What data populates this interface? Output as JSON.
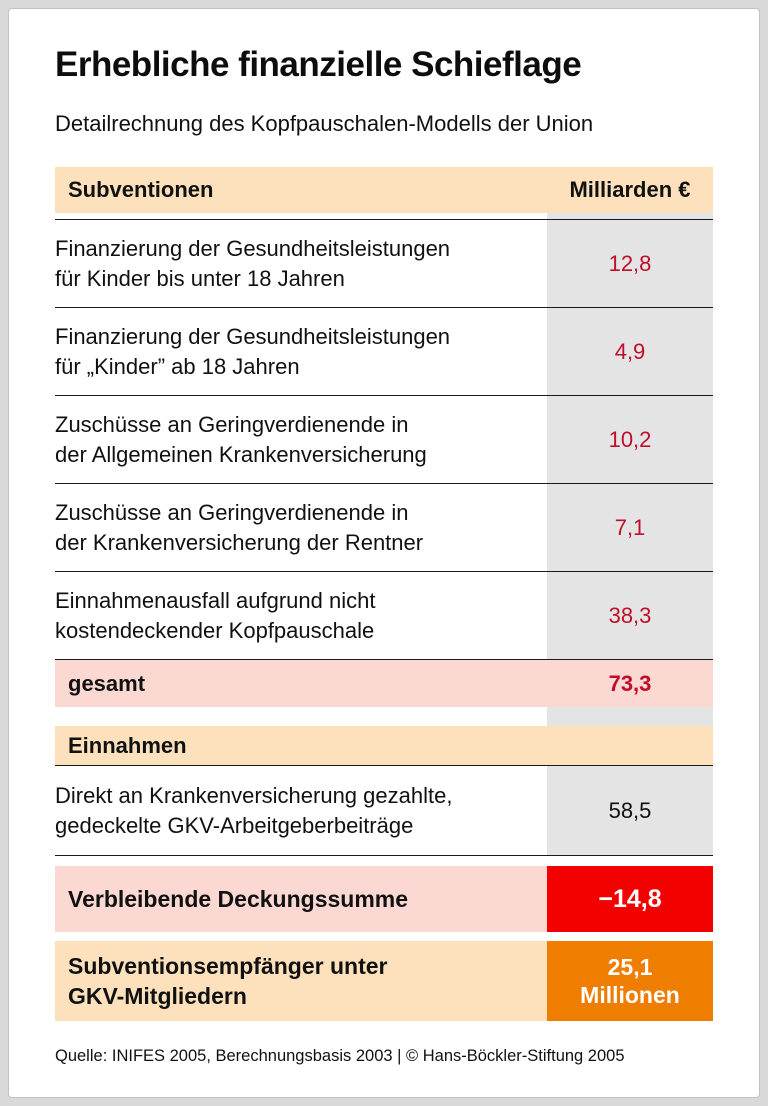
{
  "title": "Erhebliche finanzielle Schieflage",
  "subtitle": "Detailrechnung des Kopfpauschalen-Modells der Union",
  "table": {
    "header": {
      "label": "Subventionen",
      "unit": "Milliarden €"
    },
    "rows": [
      {
        "label": "Finanzierung der Gesundheitsleistungen\nfür Kinder bis unter 18 Jahren",
        "value": "12,8"
      },
      {
        "label": "Finanzierung der Gesundheitsleistungen\nfür „Kinder” ab 18 Jahren",
        "value": "4,9"
      },
      {
        "label": "Zuschüsse an Geringverdienende in\nder Allgemeinen Krankenversicherung",
        "value": "10,2"
      },
      {
        "label": "Zuschüsse an Geringverdienende in\nder Krankenversicherung der Rentner",
        "value": "7,1"
      },
      {
        "label": "Einnahmenausfall aufgrund nicht\nkostendeckender Kopfpauschale",
        "value": "38,3"
      }
    ],
    "total": {
      "label": "gesamt",
      "value": "73,3"
    },
    "income": {
      "header": "Einnahmen",
      "row": {
        "label": "Direkt an Krankenversicherung gezahlte,\ngedeckelte GKV-Arbeitgeberbeiträge",
        "value": "58,5"
      }
    },
    "balance": {
      "label": "Verbleibende Deckungssumme",
      "value": "−14,8"
    },
    "recipients": {
      "label": "Subventionsempfänger unter\nGKV-Mitgliedern",
      "value": "25,1\nMillionen"
    }
  },
  "footer": "Quelle: INIFES 2005, Berechnungsbasis 2003 | © Hans-Böckler-Stiftung 2005",
  "colors": {
    "band_peach": "#fce1bc",
    "value_column_gray": "#e4e4e4",
    "total_row_pink": "#fbd8d2",
    "negative_box_red": "#f30000",
    "recipients_box_orange": "#ef7d00",
    "value_text_red": "#c00d29"
  },
  "chart_data": {
    "type": "table",
    "title": "Erhebliche finanzielle Schieflage",
    "subtitle": "Detailrechnung des Kopfpauschalen-Modells der Union",
    "unit": "Milliarden €",
    "sections": [
      {
        "header": "Subventionen",
        "rows": [
          {
            "label": "Finanzierung der Gesundheitsleistungen für Kinder bis unter 18 Jahren",
            "value": 12.8
          },
          {
            "label": "Finanzierung der Gesundheitsleistungen für „Kinder” ab 18 Jahren",
            "value": 4.9
          },
          {
            "label": "Zuschüsse an Geringverdienende in der Allgemeinen Krankenversicherung",
            "value": 10.2
          },
          {
            "label": "Zuschüsse an Geringverdienende in der Krankenversicherung der Rentner",
            "value": 7.1
          },
          {
            "label": "Einnahmenausfall aufgrund nicht kostendeckender Kopfpauschale",
            "value": 38.3
          }
        ],
        "total": {
          "label": "gesamt",
          "value": 73.3
        }
      },
      {
        "header": "Einnahmen",
        "rows": [
          {
            "label": "Direkt an Krankenversicherung gezahlte, gedeckelte GKV-Arbeitgeberbeiträge",
            "value": 58.5
          }
        ]
      }
    ],
    "summary": [
      {
        "label": "Verbleibende Deckungssumme",
        "value": -14.8,
        "unit": "Milliarden €"
      },
      {
        "label": "Subventionsempfänger unter GKV-Mitgliedern",
        "value": 25.1,
        "unit": "Millionen"
      }
    ],
    "source": "Quelle: INIFES 2005, Berechnungsbasis 2003 | © Hans-Böckler-Stiftung 2005"
  }
}
